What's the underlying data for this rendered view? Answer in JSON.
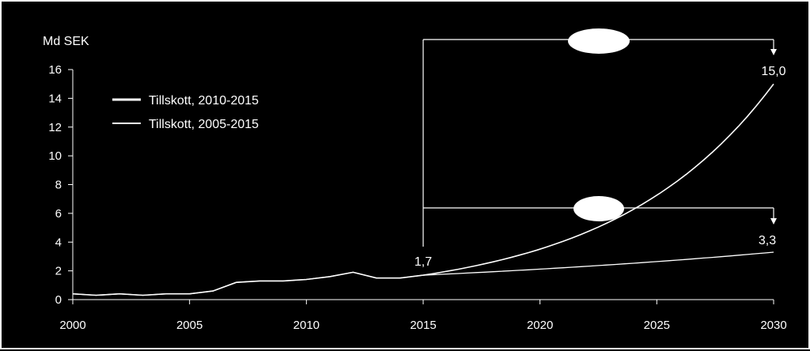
{
  "chart_data": {
    "type": "line",
    "ylabel": "Md SEK",
    "xlabel": "",
    "title": "",
    "ylim": [
      0,
      16
    ],
    "xlim": [
      2000,
      2030
    ],
    "y_ticks": [
      "0",
      "2",
      "4",
      "6",
      "8",
      "10",
      "12",
      "14",
      "16"
    ],
    "x_ticks": [
      "2000",
      "2005",
      "2010",
      "2015",
      "2020",
      "2025",
      "2030"
    ],
    "grid": false,
    "legend_position": "top-left",
    "series": [
      {
        "name": "Tillskott, 2010-2015",
        "historical": {
          "x": [
            2000,
            2001,
            2002,
            2003,
            2004,
            2005,
            2006,
            2007,
            2008,
            2009,
            2010,
            2011,
            2012,
            2013,
            2014,
            2015
          ],
          "y": [
            0.4,
            0.3,
            0.4,
            0.3,
            0.4,
            0.4,
            0.6,
            1.2,
            1.3,
            1.3,
            1.4,
            1.6,
            1.9,
            1.5,
            1.5,
            1.7
          ]
        },
        "projection": {
          "x_start": 2015,
          "y_start": 1.7,
          "x_end": 2030,
          "y_end": 15.0,
          "shape": "exponential"
        }
      },
      {
        "name": "Tillskott, 2005-2015",
        "historical": {
          "x": [
            2000,
            2001,
            2002,
            2003,
            2004,
            2005,
            2006,
            2007,
            2008,
            2009,
            2010,
            2011,
            2012,
            2013,
            2014,
            2015
          ],
          "y": [
            0.4,
            0.3,
            0.4,
            0.3,
            0.4,
            0.4,
            0.6,
            1.2,
            1.3,
            1.3,
            1.4,
            1.6,
            1.9,
            1.5,
            1.5,
            1.7
          ]
        },
        "projection": {
          "x_start": 2015,
          "y_start": 1.7,
          "x_end": 2030,
          "y_end": 3.3,
          "shape": "exponential"
        }
      }
    ],
    "annotations": [
      {
        "text": "1,7",
        "x": 2015,
        "y": 1.7
      },
      {
        "text": "15,0",
        "x": 2030,
        "y": 15.0
      },
      {
        "text": "3,3",
        "x": 2030,
        "y": 3.3
      }
    ],
    "brackets": [
      {
        "from_x": 2015,
        "to_x": 2030,
        "level": 15.0,
        "arrow_to": 15.0
      },
      {
        "from_x": 2015,
        "to_x": 2030,
        "level": 3.3,
        "arrow_to": 3.3
      }
    ],
    "colors": {
      "background": "#000000",
      "line": "#ffffff",
      "oval": "#ffffff"
    }
  }
}
